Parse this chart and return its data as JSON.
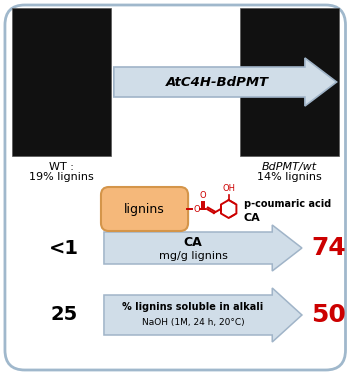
{
  "border_color": "#a0b8cc",
  "arrow_color": "#d0dde8",
  "arrow_edge_color": "#a0b4c8",
  "title_arrow_text": "AtC4H-BdPMT",
  "wt_label": "WT :",
  "wt_lignins": "19% lignins",
  "bdpmt_label": "BdPMT/wt",
  "bdpmt_lignins": "14% lignins",
  "lignins_box_color": "#f5b87a",
  "lignins_box_edge": "#d4954a",
  "lignins_box_text": "lignins",
  "ca_acid_text": "p-coumaric acid",
  "ca_label": "CA",
  "arrow1_text_line1": "CA",
  "arrow1_text_line2": "mg/g lignins",
  "arrow2_text_line1": "% lignins soluble in alkali",
  "arrow2_text_line2": "NaOH (1M, 24 h, 20°C)",
  "left_val1": "<1",
  "left_val2": "25",
  "right_val1": "74",
  "right_val2": "50",
  "red_color": "#cc0000",
  "ca_structure_color": "#cc0000",
  "fig_width": 3.54,
  "fig_height": 3.75,
  "dpi": 100
}
